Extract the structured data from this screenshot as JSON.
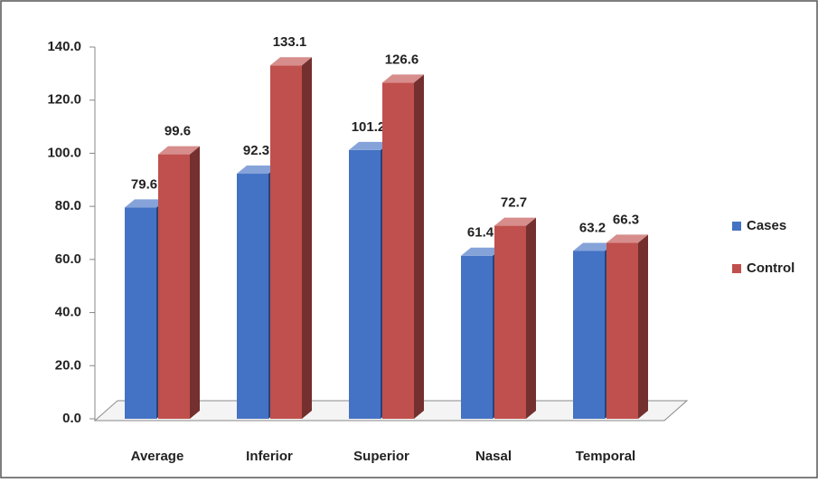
{
  "chart_data": {
    "type": "bar3d",
    "categories": [
      "Average",
      "Inferior",
      "Superior",
      "Nasal",
      "Temporal"
    ],
    "series": [
      {
        "name": "Cases",
        "color": "#4472c4",
        "values": [
          79.6,
          92.3,
          101.2,
          61.4,
          63.2
        ]
      },
      {
        "name": "Control",
        "color": "#c0504d",
        "values": [
          99.6,
          133.1,
          126.6,
          72.7,
          66.3
        ]
      }
    ],
    "ylim": [
      0,
      140
    ],
    "yticks": [
      {
        "value": 0,
        "label": "0.0"
      },
      {
        "value": 20,
        "label": "20.0"
      },
      {
        "value": 40,
        "label": "40.0"
      },
      {
        "value": 60,
        "label": "60.0"
      },
      {
        "value": 80,
        "label": "80.0"
      },
      {
        "value": 100,
        "label": "100.0"
      },
      {
        "value": 120,
        "label": "120.0"
      },
      {
        "value": 140,
        "label": "140.0"
      }
    ],
    "legend": "right"
  }
}
